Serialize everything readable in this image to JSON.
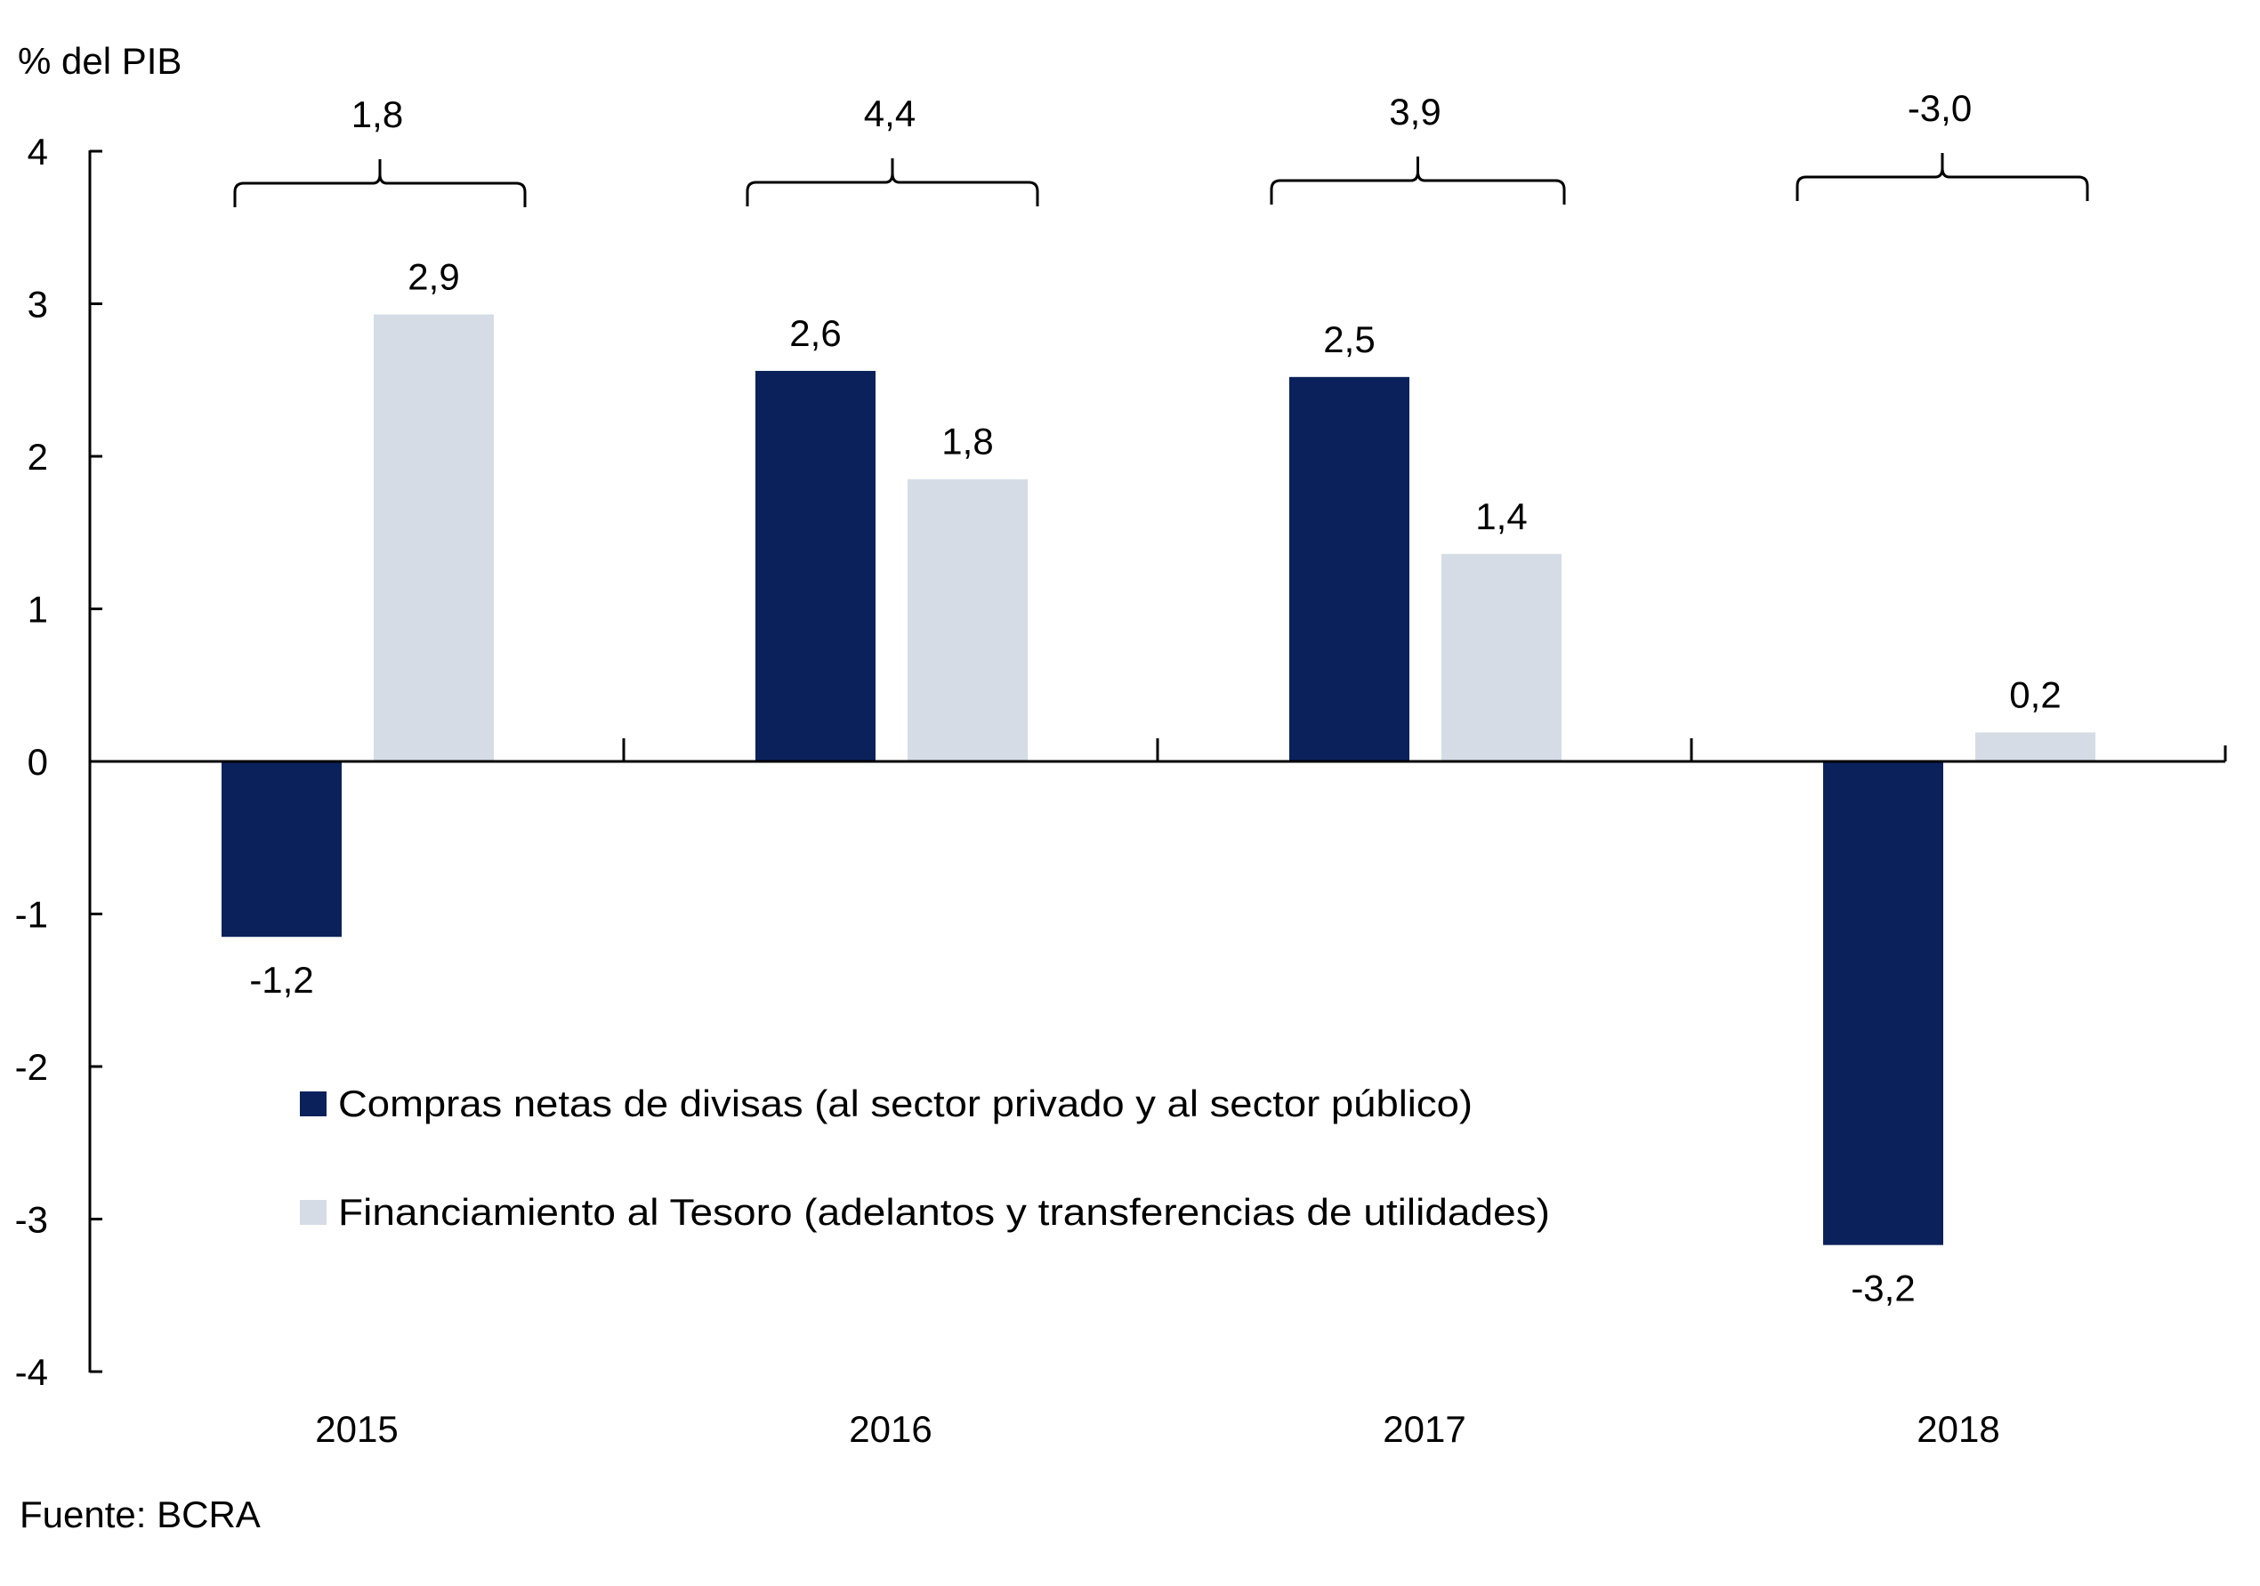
{
  "chart_data": {
    "type": "bar",
    "ylabel": "% del PIB",
    "xlabel": "",
    "ylim": [
      -4,
      4
    ],
    "yticks": [
      4,
      3,
      2,
      1,
      0,
      -1,
      -2,
      -3,
      -4
    ],
    "ytick_labels": [
      "4",
      "3",
      "2",
      "1",
      "0",
      "-1",
      "-2",
      "-3",
      "-4"
    ],
    "categories": [
      "2015",
      "2016",
      "2017",
      "2018"
    ],
    "series": [
      {
        "name": "Compras netas de divisas (al sector privado y al sector público)",
        "color": "#0A215B",
        "values": [
          -1.15,
          2.56,
          2.52,
          -3.17
        ],
        "labels": [
          "-1,2",
          "2,6",
          "2,5",
          "-3,2"
        ]
      },
      {
        "name": "Financiamiento al Tesoro (adelantos y transferencias de utilidades)",
        "color": "#D5DCE5",
        "values": [
          2.93,
          1.85,
          1.36,
          0.19
        ],
        "labels": [
          "2,9",
          "1,8",
          "1,4",
          "0,2"
        ]
      }
    ],
    "totals": [
      {
        "category": "2015",
        "value": 1.8,
        "label": "1,8"
      },
      {
        "category": "2016",
        "value": 4.4,
        "label": "4,4"
      },
      {
        "category": "2017",
        "value": 3.9,
        "label": "3,9"
      },
      {
        "category": "2018",
        "value": -3.0,
        "label": "-3,0"
      }
    ],
    "legend_position": "lower-left",
    "grid": false,
    "source": "Fuente: BCRA"
  }
}
